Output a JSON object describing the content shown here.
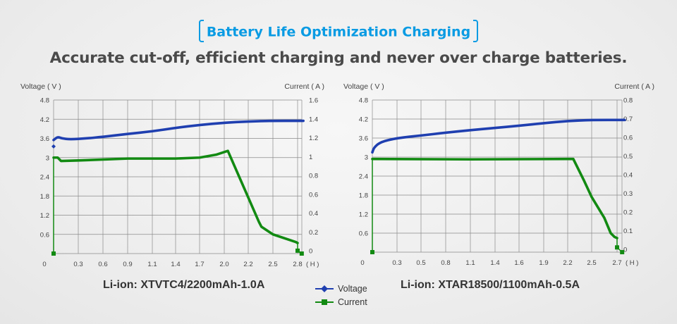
{
  "header": {
    "title": "Battery Life Optimization Charging",
    "subtitle": "Accurate cut-off, efficient charging and never over charge batteries."
  },
  "legend": {
    "voltage_label": "Voltage",
    "current_label": "Current",
    "voltage_color": "#1f3fb0",
    "current_color": "#128a12"
  },
  "chart_data": [
    {
      "type": "line",
      "title": "Li-ion: XTVTC4/2200mAh-1.0A",
      "xlabel": "( H )",
      "ylabel_left": "Voltage ( V )",
      "ylabel_right": "Current ( A )",
      "x_ticks": [
        0,
        0.3,
        0.6,
        0.9,
        1.1,
        1.4,
        1.7,
        2.0,
        2.2,
        2.5,
        2.8
      ],
      "x_tick_labels": [
        "0",
        "0.3",
        "0.6",
        "0.9",
        "1.1",
        "1.4",
        "1.7",
        "2.0",
        "2.2",
        "2.5",
        "2.8"
      ],
      "y_left_ticks": [
        "4.8",
        "4.2",
        "3.6",
        "3",
        "2.4",
        "1.8",
        "1.2",
        "0.6"
      ],
      "y_left_range": [
        0,
        4.8
      ],
      "y_right_ticks": [
        "1.6",
        "1.4",
        "1.2",
        "1",
        "0.8",
        "0.6",
        "0.4",
        "0.2",
        "0"
      ],
      "y_right_range": [
        0,
        1.6
      ],
      "grid": true,
      "series": [
        {
          "name": "Voltage",
          "axis": "left",
          "marker_points": [
            [
              0,
              3.35
            ]
          ],
          "points": [
            [
              0,
              3.55
            ],
            [
              0.05,
              3.65
            ],
            [
              0.1,
              3.6
            ],
            [
              0.2,
              3.57
            ],
            [
              0.4,
              3.6
            ],
            [
              0.6,
              3.65
            ],
            [
              0.9,
              3.74
            ],
            [
              1.1,
              3.82
            ],
            [
              1.4,
              3.93
            ],
            [
              1.7,
              4.02
            ],
            [
              2.0,
              4.09
            ],
            [
              2.2,
              4.13
            ],
            [
              2.5,
              4.15
            ],
            [
              2.8,
              4.15
            ],
            [
              2.87,
              4.15
            ]
          ]
        },
        {
          "name": "Current",
          "axis": "right",
          "marker_points": [
            [
              0,
              0
            ],
            [
              2.8,
              0.03
            ],
            [
              2.85,
              0
            ]
          ],
          "points": [
            [
              0,
              0
            ],
            [
              0,
              1.0
            ],
            [
              0.05,
              1.0
            ],
            [
              0.09,
              0.965
            ],
            [
              0.3,
              0.97
            ],
            [
              0.9,
              0.99
            ],
            [
              1.4,
              0.99
            ],
            [
              1.7,
              1.0
            ],
            [
              1.9,
              1.03
            ],
            [
              2.03,
              1.07
            ],
            [
              2.33,
              0.33
            ],
            [
              2.36,
              0.28
            ],
            [
              2.5,
              0.2
            ],
            [
              2.78,
              0.12
            ],
            [
              2.8,
              0.11
            ],
            [
              2.8,
              0.03
            ],
            [
              2.85,
              0
            ]
          ]
        }
      ]
    },
    {
      "type": "line",
      "title": "Li-ion: XTAR18500/1100mAh-0.5A",
      "xlabel": "( H )",
      "ylabel_left": "Voltage ( V )",
      "ylabel_right": "Current ( A )",
      "x_ticks": [
        0,
        0.3,
        0.5,
        0.8,
        1.1,
        1.4,
        1.6,
        1.9,
        2.2,
        2.5,
        2.7
      ],
      "x_tick_labels": [
        "0",
        "0.3",
        "0.5",
        "0.8",
        "1.1",
        "1.4",
        "1.6",
        "1.9",
        "2.2",
        "2.5",
        "2.7"
      ],
      "y_left_ticks": [
        "4.8",
        "4.2",
        "3.6",
        "3",
        "2.4",
        "1.8",
        "1.2",
        "0.6"
      ],
      "y_left_range": [
        0,
        4.8
      ],
      "y_right_ticks": [
        "0.8",
        "0.7",
        "0.6",
        "0.5",
        "0.4",
        "0.3",
        "0.2",
        "0.1",
        "0"
      ],
      "y_right_range": [
        0,
        0.8
      ],
      "grid": true,
      "series": [
        {
          "name": "Voltage",
          "axis": "left",
          "marker_points": [],
          "points": [
            [
              0,
              3.15
            ],
            [
              0.02,
              3.3
            ],
            [
              0.1,
              3.48
            ],
            [
              0.3,
              3.6
            ],
            [
              0.5,
              3.68
            ],
            [
              0.8,
              3.77
            ],
            [
              1.1,
              3.85
            ],
            [
              1.4,
              3.92
            ],
            [
              1.6,
              3.99
            ],
            [
              1.9,
              4.07
            ],
            [
              2.2,
              4.14
            ],
            [
              2.5,
              4.17
            ],
            [
              2.76,
              4.17
            ]
          ]
        },
        {
          "name": "Current",
          "axis": "right",
          "marker_points": [
            [
              0,
              0
            ],
            [
              2.7,
              0.025
            ],
            [
              2.74,
              0
            ]
          ],
          "points": [
            [
              0,
              0
            ],
            [
              0,
              0.49
            ],
            [
              1.1,
              0.488
            ],
            [
              2.2,
              0.49
            ],
            [
              2.27,
              0.49
            ],
            [
              2.4,
              0.38
            ],
            [
              2.5,
              0.29
            ],
            [
              2.6,
              0.18
            ],
            [
              2.65,
              0.1
            ],
            [
              2.68,
              0.08
            ],
            [
              2.7,
              0.074
            ],
            [
              2.7,
              0.025
            ],
            [
              2.74,
              0
            ]
          ]
        }
      ]
    }
  ]
}
